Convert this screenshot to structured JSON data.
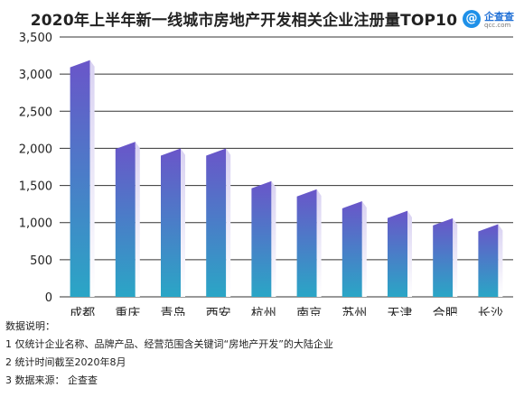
{
  "title": "2020年上半年新一线城市房地产开发相关企业注册量TOP10",
  "logo": {
    "glyph": "@",
    "name": "企查查",
    "url": "qcc.com"
  },
  "notes": [
    "数据说明：",
    "1 仅统计企业名称、品牌产品、经营范围含关键词“房地产开发”的大陆企业",
    "2 统计时间截至2020年8月",
    "3 数据来源：  企查查"
  ],
  "chart_data": {
    "type": "bar",
    "title": "2020年上半年新一线城市房地产开发相关企业注册量TOP10",
    "categories": [
      "成都",
      "重庆",
      "青岛",
      "西安",
      "杭州",
      "南京",
      "苏州",
      "天津",
      "合肥",
      "长沙"
    ],
    "values": [
      3150,
      2050,
      1960,
      1960,
      1520,
      1410,
      1250,
      1120,
      1020,
      940
    ],
    "ylim": [
      0,
      3500
    ],
    "yticks": [
      0,
      500,
      1000,
      1500,
      2000,
      2500,
      3000,
      3500
    ],
    "ytick_labels": [
      "0",
      "500",
      "1,000",
      "1,500",
      "2,000",
      "2,500",
      "3,000",
      "3,500"
    ],
    "grid": true,
    "colors": {
      "bar_top": "#6a55c9",
      "bar_bottom": "#2aa6c6",
      "side_top": "#d9d2f2",
      "side_bottom": "#ffffff",
      "grid": "#333333"
    }
  }
}
